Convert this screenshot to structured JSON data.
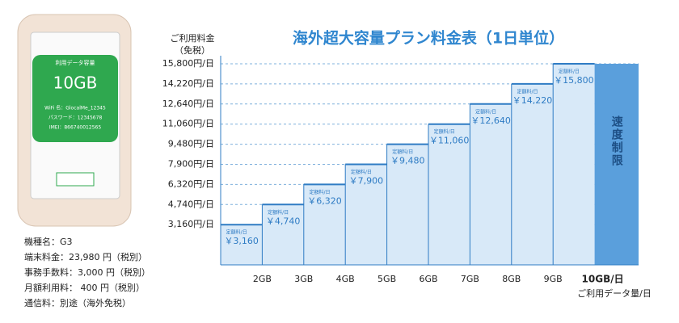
{
  "chart_data": {
    "type": "step",
    "title": "海外超大容量プラン料金表（1日単位）",
    "y_label": [
      "ご利用料金",
      "（免税）"
    ],
    "x_label": "ご利用データ量/日",
    "categories": [
      "2GB",
      "3GB",
      "4GB",
      "5GB",
      "6GB",
      "7GB",
      "8GB",
      "9GB",
      "10GB/日"
    ],
    "values": [
      3160,
      4740,
      6320,
      7900,
      9480,
      11060,
      12640,
      14220,
      15800
    ],
    "value_labels": [
      "￥3,160",
      "￥4,740",
      "￥6,320",
      "￥7,900",
      "￥9,480",
      "￥11,060",
      "￥12,640",
      "￥14,220",
      "￥15,800"
    ],
    "step_label": "定額料/日",
    "limit_label": "速度制限",
    "color": "#d8e9f8",
    "edge_color": "#2f7cc4",
    "limit_color": "#5a9fdc",
    "ylim": [
      0,
      15800
    ],
    "yticks": [
      {
        "value": 3160,
        "label": "3,160円/日"
      },
      {
        "value": 4740,
        "label": "4,740円/日"
      },
      {
        "value": 6320,
        "label": "6,320円/日"
      },
      {
        "value": 7900,
        "label": "7,900円/日"
      },
      {
        "value": 9480,
        "label": "9,480円/日"
      },
      {
        "value": 11060,
        "label": "11,060円/日"
      },
      {
        "value": 12640,
        "label": "12,640円/日"
      },
      {
        "value": 14220,
        "label": "14,220円/日"
      },
      {
        "value": 15800,
        "label": "15,800円/日"
      }
    ],
    "grid": true
  },
  "device": {
    "screen_label": "利用データ容量",
    "usage": "10GB",
    "info": [
      "WiFi 名：GlocalMe_12345",
      "パスワード：12345678",
      "IMEI：866740012565"
    ],
    "specs": [
      "機種名：G3",
      "端末料金：23,980 円（税別）",
      "事務手数料：3,000 円（税別）",
      "月額利用料： 400 円（税別）",
      "通信料：別途（海外免税）"
    ]
  }
}
